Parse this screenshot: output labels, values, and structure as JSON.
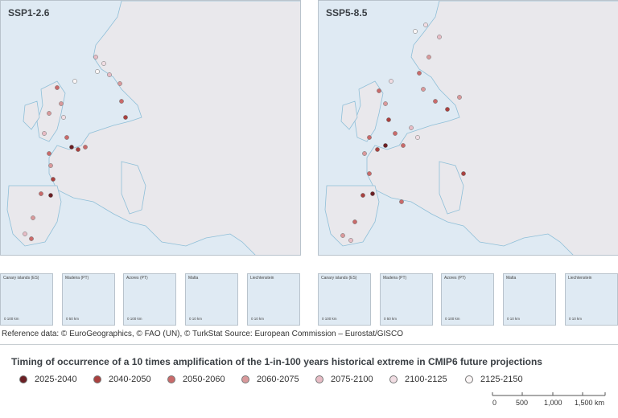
{
  "maps": {
    "left_title": "SSP1-2.6",
    "right_title": "SSP5-8.5"
  },
  "colors": {
    "sea": "#dfeaf3",
    "land": "#e9e8ec",
    "land_border": "#8fbfd8",
    "dot_stroke": "#6e6e6e"
  },
  "insets": {
    "labels": [
      "Canary islands (ES)",
      "Madeira (PT)",
      "Azores (PT)",
      "Malta",
      "Liechtenstein"
    ],
    "scales": [
      "0   100 km",
      "0      50 km",
      "0   100 km",
      "0    10 km",
      "0    10 km"
    ]
  },
  "reference": "Reference data: © EuroGeographics, © FAO (UN), © TurkStat Source: European Commission – Eurostat/GISCO",
  "legend": {
    "title": "Timing of occurrence of a 10 times amplification of the 1-in-100 years historical extreme in CMIP6 future projections",
    "items": [
      {
        "label": "2025-2040",
        "color": "#6b1f24"
      },
      {
        "label": "2040-2050",
        "color": "#a9413f"
      },
      {
        "label": "2050-2060",
        "color": "#c96a6a"
      },
      {
        "label": "2060-2075",
        "color": "#d9999b"
      },
      {
        "label": "2075-2100",
        "color": "#e7bcc5"
      },
      {
        "label": "2100-2125",
        "color": "#f1dde3"
      },
      {
        "label": "2125-2150",
        "color": "#fbf6f6"
      }
    ],
    "scale_ticks": [
      "0",
      "500",
      "1,000",
      "1,500 km"
    ]
  }
}
